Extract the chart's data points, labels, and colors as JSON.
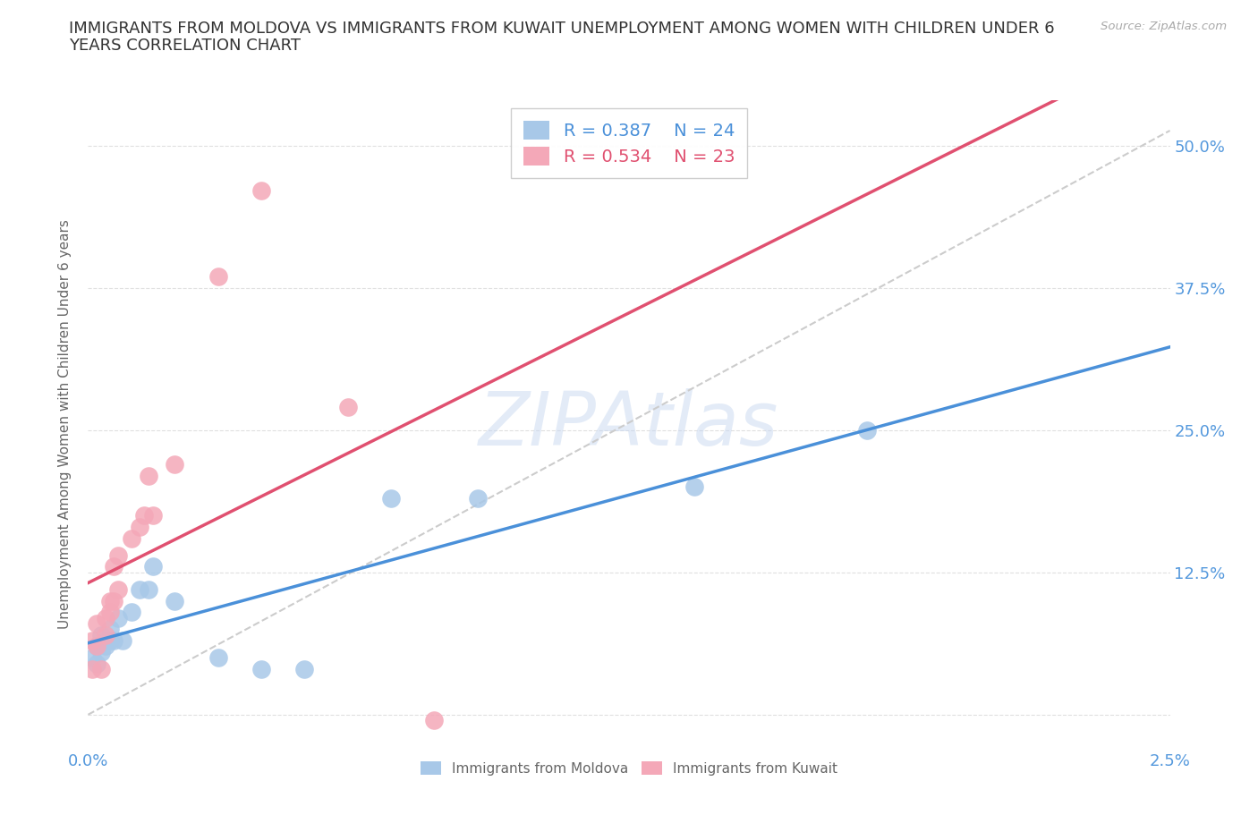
{
  "title_line1": "IMMIGRANTS FROM MOLDOVA VS IMMIGRANTS FROM KUWAIT UNEMPLOYMENT AMONG WOMEN WITH CHILDREN UNDER 6",
  "title_line2": "YEARS CORRELATION CHART",
  "source": "Source: ZipAtlas.com",
  "ylabel": "Unemployment Among Women with Children Under 6 years",
  "xlim": [
    0.0,
    0.025
  ],
  "ylim": [
    -0.03,
    0.54
  ],
  "xticks": [
    0.0,
    0.005,
    0.01,
    0.015,
    0.02,
    0.025
  ],
  "xticklabels": [
    "0.0%",
    "",
    "",
    "",
    "",
    "2.5%"
  ],
  "yticks": [
    0.0,
    0.125,
    0.25,
    0.375,
    0.5
  ],
  "yticklabels_right": [
    "",
    "12.5%",
    "25.0%",
    "37.5%",
    "50.0%"
  ],
  "moldova_color": "#a8c8e8",
  "kuwait_color": "#f4a8b8",
  "moldova_line_color": "#4a90d9",
  "kuwait_line_color": "#e05070",
  "moldova_R": 0.387,
  "moldova_N": 24,
  "kuwait_R": 0.534,
  "kuwait_N": 23,
  "watermark": "ZIPAtlas",
  "background_color": "#ffffff",
  "moldova_x": [
    0.0001,
    0.0002,
    0.0002,
    0.0003,
    0.0003,
    0.0004,
    0.0004,
    0.0005,
    0.0005,
    0.0006,
    0.0007,
    0.0008,
    0.001,
    0.0012,
    0.0014,
    0.0015,
    0.002,
    0.003,
    0.004,
    0.005,
    0.007,
    0.009,
    0.014,
    0.018
  ],
  "moldova_y": [
    0.05,
    0.045,
    0.06,
    0.055,
    0.07,
    0.06,
    0.065,
    0.065,
    0.075,
    0.065,
    0.085,
    0.065,
    0.09,
    0.11,
    0.11,
    0.13,
    0.1,
    0.05,
    0.04,
    0.04,
    0.19,
    0.19,
    0.2,
    0.25
  ],
  "kuwait_x": [
    0.0001,
    0.0001,
    0.0002,
    0.0002,
    0.0003,
    0.0004,
    0.0004,
    0.0005,
    0.0005,
    0.0006,
    0.0006,
    0.0007,
    0.0007,
    0.001,
    0.0012,
    0.0013,
    0.0014,
    0.0015,
    0.002,
    0.003,
    0.004,
    0.006,
    0.008
  ],
  "kuwait_y": [
    0.04,
    0.065,
    0.06,
    0.08,
    0.04,
    0.07,
    0.085,
    0.09,
    0.1,
    0.1,
    0.13,
    0.11,
    0.14,
    0.155,
    0.165,
    0.175,
    0.21,
    0.175,
    0.22,
    0.385,
    0.46,
    0.27,
    -0.005
  ],
  "title_fontsize": 13,
  "label_fontsize": 11,
  "tick_fontsize": 13,
  "legend_fontsize": 14
}
